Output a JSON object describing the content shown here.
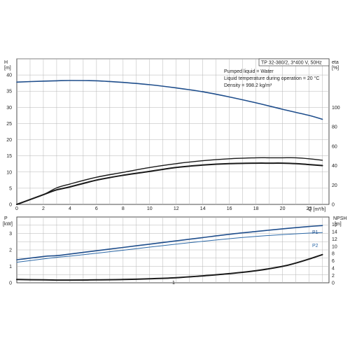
{
  "chart_data": [
    {
      "type": "line",
      "title": "",
      "info_box": [
        "TP 32-380/2, 3*400 V, 50Hz"
      ],
      "notes": [
        "Pumped liquid = Water",
        "Liquid temperature during operation = 20 °C",
        "Density = 998.2 kg/m³"
      ],
      "xlabel": "Q [m³/h]",
      "xlim": [
        0,
        23.5
      ],
      "xticks": [
        0,
        2,
        4,
        6,
        8,
        10,
        12,
        14,
        16,
        18,
        20,
        22
      ],
      "xticklabels": [
        "0",
        "2",
        "4",
        "6",
        "8",
        "10",
        "12",
        "14",
        "16",
        "18",
        "20",
        "22"
      ],
      "x_unit_label": "Q [m³/h]",
      "left_axis": {
        "label": "H",
        "unit": "[m]",
        "lim": [
          0,
          45
        ],
        "ticks": [
          0,
          5,
          10,
          15,
          20,
          25,
          30,
          35,
          40
        ],
        "ticklabels": [
          "0",
          "5",
          "10",
          "15",
          "20",
          "25",
          "30",
          "35",
          "40"
        ]
      },
      "right_axis": {
        "label": "eta",
        "unit": "[%]",
        "lim": [
          0,
          150
        ],
        "ticks": [
          0,
          20,
          40,
          60,
          80,
          100
        ],
        "ticklabels": [
          "0",
          "20",
          "40",
          "60",
          "80",
          "100"
        ]
      },
      "grid": true,
      "series": [
        {
          "axis": "left",
          "color": "#1f4e8c",
          "width": 1.6,
          "x": [
            0,
            2,
            3,
            4,
            6,
            8,
            10,
            12,
            14,
            16,
            18,
            20,
            22,
            23
          ],
          "values": [
            37.8,
            38.1,
            38.2,
            38.3,
            38.2,
            37.7,
            37.0,
            36.0,
            34.8,
            33.2,
            31.4,
            29.4,
            27.5,
            26.3
          ]
        },
        {
          "axis": "right",
          "color": "#1a1a1a",
          "width": 1.4,
          "x": [
            0,
            1,
            2,
            3,
            4,
            6,
            8,
            10,
            12,
            14,
            16,
            18,
            19,
            20,
            21,
            22,
            23
          ],
          "values": [
            0,
            5,
            10,
            17,
            21,
            28,
            33,
            38,
            42,
            45,
            47,
            48,
            48,
            48,
            48,
            47,
            45.5
          ]
        },
        {
          "axis": "right",
          "color": "#1a1a1a",
          "width": 2.0,
          "x": [
            0,
            1,
            2,
            3,
            4,
            6,
            8,
            10,
            12,
            14,
            16,
            18,
            19,
            20,
            21,
            22,
            23
          ],
          "values": [
            0,
            5,
            10,
            15,
            18,
            25,
            30,
            34,
            38,
            40.5,
            42,
            42.5,
            42.5,
            42.5,
            42,
            41,
            40
          ]
        }
      ]
    },
    {
      "type": "line",
      "title": "",
      "left_axis": {
        "label": "P",
        "unit": "[kW]",
        "lim": [
          0,
          4
        ],
        "ticks": [
          0,
          1,
          2,
          3
        ],
        "ticklabels": [
          "0",
          "1",
          "2",
          "3"
        ]
      },
      "right_axis": {
        "label": "NPSH",
        "unit": "[m]",
        "lim": [
          0,
          18
        ],
        "ticks": [
          0,
          2,
          4,
          6,
          8,
          10,
          12,
          14,
          16
        ],
        "ticklabels": [
          "0",
          "2",
          "4",
          "6",
          "8",
          "10",
          "12",
          "14",
          "16"
        ]
      },
      "xlim": [
        0,
        23.5
      ],
      "grid": true,
      "series_labels": [
        "P1",
        "P2"
      ],
      "center_label": "1",
      "series": [
        {
          "name": "P1",
          "axis": "left",
          "color": "#1f4e8c",
          "width": 1.6,
          "x": [
            0,
            2,
            3,
            4,
            6,
            8,
            10,
            12,
            14,
            16,
            18,
            20,
            22,
            23
          ],
          "values": [
            1.4,
            1.6,
            1.65,
            1.75,
            1.95,
            2.15,
            2.35,
            2.55,
            2.75,
            2.95,
            3.12,
            3.28,
            3.42,
            3.48
          ]
        },
        {
          "name": "P2",
          "axis": "left",
          "color": "#2e6aa8",
          "width": 1.0,
          "x": [
            0,
            2,
            3,
            4,
            6,
            8,
            10,
            12,
            14,
            16,
            18,
            20,
            22,
            23
          ],
          "values": [
            1.25,
            1.45,
            1.55,
            1.62,
            1.8,
            1.98,
            2.17,
            2.35,
            2.52,
            2.68,
            2.82,
            2.93,
            3.02,
            3.05
          ]
        },
        {
          "name": "NPSH",
          "axis": "right",
          "color": "#1a1a1a",
          "width": 2.0,
          "x": [
            0,
            2,
            3,
            4,
            6,
            8,
            10,
            12,
            14,
            16,
            18,
            20,
            21,
            22,
            23
          ],
          "values": [
            0.9,
            0.8,
            0.75,
            0.75,
            0.8,
            0.9,
            1.1,
            1.4,
            1.9,
            2.5,
            3.3,
            4.5,
            5.4,
            6.5,
            7.7
          ]
        }
      ]
    }
  ]
}
